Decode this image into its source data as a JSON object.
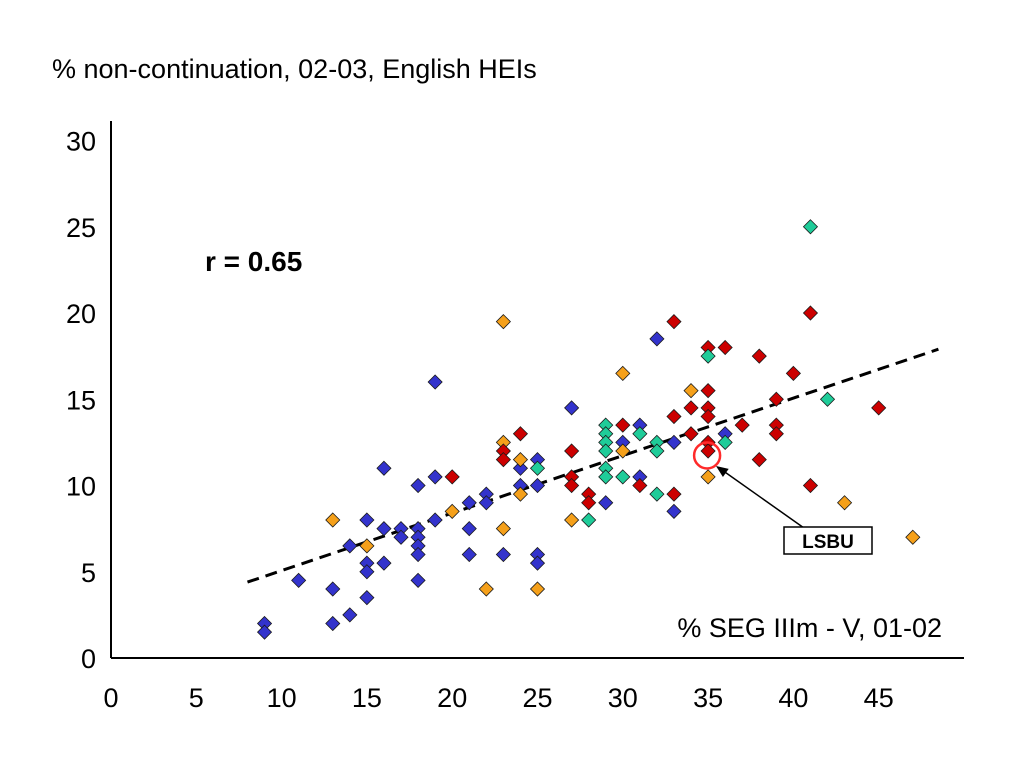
{
  "chart_data": {
    "type": "scatter",
    "ylabel": "% non-continuation, 02-03, English HEIs",
    "xlabel": "% SEG IIIm - V, 01-02",
    "annotation": "r = 0.65",
    "callout": "LSBU",
    "xlim": [
      0,
      50
    ],
    "ylim": [
      0,
      30
    ],
    "x_ticks": [
      0,
      5,
      10,
      15,
      20,
      25,
      30,
      35,
      40,
      45
    ],
    "y_ticks": [
      0,
      5,
      10,
      15,
      20,
      25,
      30
    ],
    "trendline": {
      "x": [
        8,
        48.5
      ],
      "y": [
        4.4,
        17.9
      ]
    },
    "highlight": {
      "x": 35,
      "y": 11.8
    },
    "series": [
      {
        "color": "#3333cc",
        "points": [
          [
            9,
            2
          ],
          [
            9,
            1.5
          ],
          [
            11,
            4.5
          ],
          [
            13,
            4
          ],
          [
            13,
            2
          ],
          [
            14,
            6.5
          ],
          [
            14,
            2.5
          ],
          [
            15,
            8
          ],
          [
            15,
            5.5
          ],
          [
            15,
            5
          ],
          [
            15,
            3.5
          ],
          [
            16,
            11
          ],
          [
            16,
            7.5
          ],
          [
            16,
            5.5
          ],
          [
            17,
            7.5
          ],
          [
            17,
            7
          ],
          [
            18,
            10
          ],
          [
            18,
            7.5
          ],
          [
            18,
            7
          ],
          [
            18,
            6.5
          ],
          [
            18,
            6
          ],
          [
            18,
            4.5
          ],
          [
            19,
            16
          ],
          [
            19,
            10.5
          ],
          [
            19,
            8
          ],
          [
            21,
            9
          ],
          [
            21,
            7.5
          ],
          [
            21,
            6
          ],
          [
            22,
            9.5
          ],
          [
            22,
            9
          ],
          [
            23,
            6
          ],
          [
            24,
            11
          ],
          [
            24,
            10
          ],
          [
            25,
            11.5
          ],
          [
            25,
            10
          ],
          [
            25,
            6
          ],
          [
            25,
            5.5
          ],
          [
            27,
            14.5
          ],
          [
            29,
            9
          ],
          [
            30,
            12.5
          ],
          [
            31,
            13.5
          ],
          [
            31,
            10.5
          ],
          [
            32,
            18.5
          ],
          [
            33,
            8.5
          ],
          [
            33,
            12.5
          ],
          [
            36,
            13
          ]
        ]
      },
      {
        "color": "#f5a01a",
        "points": [
          [
            13,
            8
          ],
          [
            15,
            6.5
          ],
          [
            20,
            8.5
          ],
          [
            22,
            4
          ],
          [
            23,
            19.5
          ],
          [
            23,
            12.5
          ],
          [
            23,
            7.5
          ],
          [
            24,
            11.5
          ],
          [
            24,
            9.5
          ],
          [
            25,
            4
          ],
          [
            27,
            8
          ],
          [
            30,
            16.5
          ],
          [
            30,
            12
          ],
          [
            34,
            15.5
          ],
          [
            35,
            10.5
          ],
          [
            43,
            9
          ],
          [
            47,
            7
          ]
        ]
      },
      {
        "color": "#cc0000",
        "points": [
          [
            20,
            10.5
          ],
          [
            23,
            12
          ],
          [
            23,
            11.5
          ],
          [
            24,
            13
          ],
          [
            27,
            12
          ],
          [
            27,
            10.5
          ],
          [
            27,
            10
          ],
          [
            28,
            9.5
          ],
          [
            28,
            9
          ],
          [
            30,
            13.5
          ],
          [
            31,
            10
          ],
          [
            33,
            19.5
          ],
          [
            33,
            14
          ],
          [
            33,
            9.5
          ],
          [
            34,
            14.5
          ],
          [
            34,
            13
          ],
          [
            35,
            18
          ],
          [
            35,
            15.5
          ],
          [
            35,
            14.5
          ],
          [
            35,
            14
          ],
          [
            35,
            12.5
          ],
          [
            35,
            12
          ],
          [
            36,
            18
          ],
          [
            37,
            13.5
          ],
          [
            38,
            17.5
          ],
          [
            38,
            11.5
          ],
          [
            39,
            15
          ],
          [
            39,
            13.5
          ],
          [
            39,
            13
          ],
          [
            40,
            16.5
          ],
          [
            41,
            20
          ],
          [
            41,
            10
          ],
          [
            45,
            14.5
          ]
        ]
      },
      {
        "color": "#1fcc99",
        "points": [
          [
            25,
            11
          ],
          [
            28,
            8
          ],
          [
            29,
            13.5
          ],
          [
            29,
            13
          ],
          [
            29,
            12.5
          ],
          [
            29,
            12
          ],
          [
            29,
            11
          ],
          [
            29,
            10.5
          ],
          [
            30,
            10.5
          ],
          [
            31,
            13
          ],
          [
            32,
            12.5
          ],
          [
            32,
            12
          ],
          [
            32,
            9.5
          ],
          [
            35,
            17.5
          ],
          [
            36,
            12.5
          ],
          [
            41,
            25
          ],
          [
            42,
            15
          ]
        ]
      }
    ]
  }
}
